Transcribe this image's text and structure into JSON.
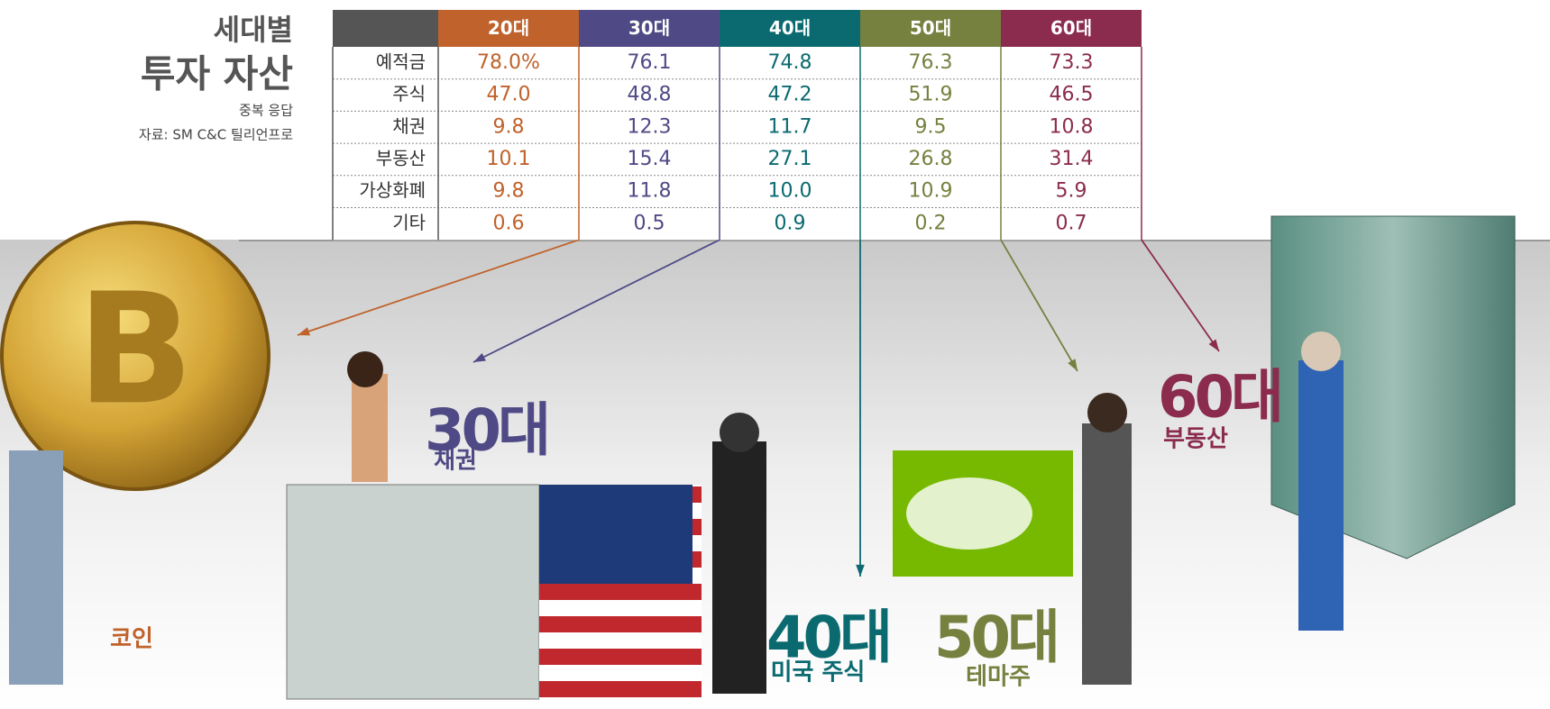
{
  "header": {
    "title_line1": "세대별",
    "title_line2": "투자 자산",
    "note": "중복 응답",
    "source": "자료: SM C&C 틸리언프로"
  },
  "table": {
    "columns": [
      "20대",
      "30대",
      "40대",
      "50대",
      "60대"
    ],
    "rows": [
      [
        "예적금",
        "78.0%",
        "76.1",
        "74.8",
        "76.3",
        "73.3"
      ],
      [
        "주식",
        "47.0",
        "48.8",
        "47.2",
        "51.9",
        "46.5"
      ],
      [
        "채권",
        "9.8",
        "12.3",
        "11.7",
        "9.5",
        "10.8"
      ],
      [
        "부동산",
        "10.1",
        "15.4",
        "27.1",
        "26.8",
        "31.4"
      ],
      [
        "가상화폐",
        "9.8",
        "11.8",
        "10.0",
        "10.9",
        "5.9"
      ],
      [
        "기타",
        "0.6",
        "0.5",
        "0.9",
        "0.2",
        "0.7"
      ]
    ]
  },
  "callouts": [
    {
      "label": "코인"
    },
    {
      "age": "30대",
      "label": "채권"
    },
    {
      "age": "40대",
      "label": "미국 주식"
    },
    {
      "age": "50대",
      "label": "테마주"
    },
    {
      "age": "60대",
      "label": "부동산"
    }
  ]
}
